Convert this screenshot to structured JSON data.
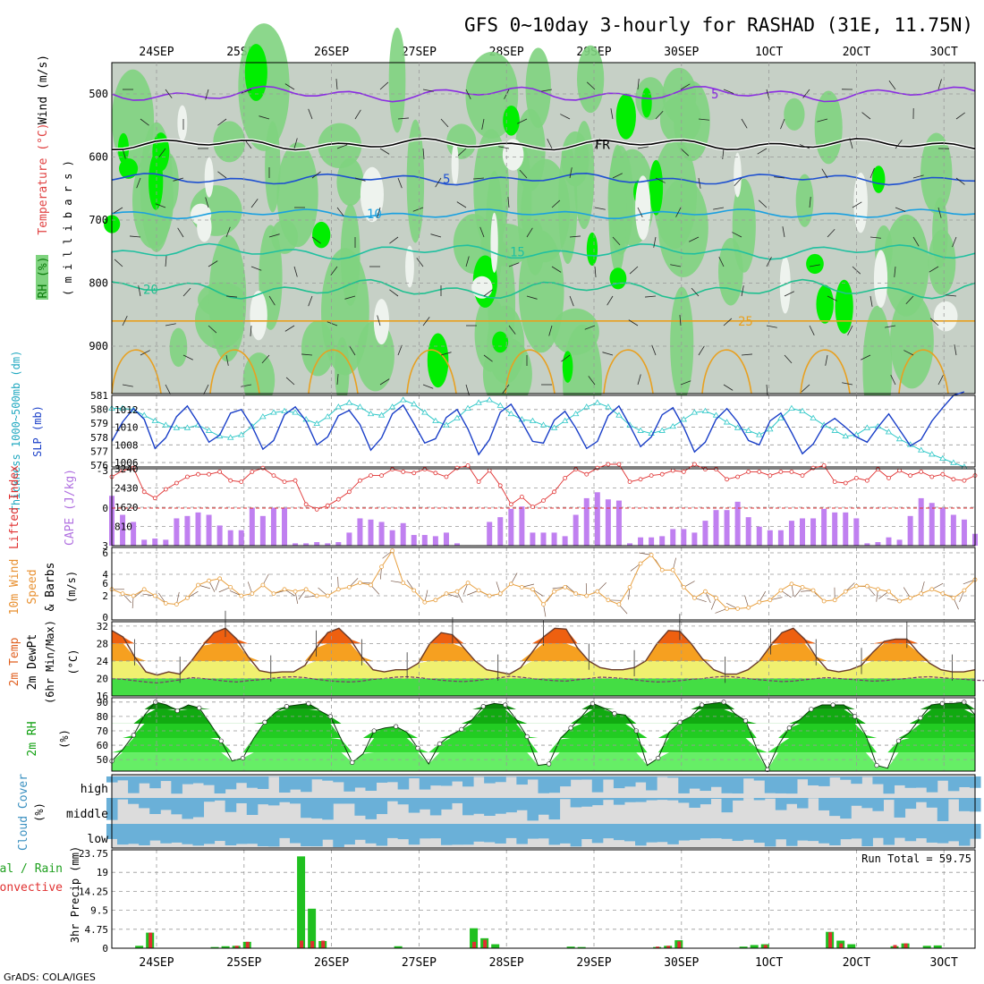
{
  "title": "GFS 0~10day 3-hourly for RASHAD (31E, 11.75N)",
  "footer": "GrADS: COLA/IGES",
  "dates": [
    "24SEP",
    "25SEP",
    "26SEP",
    "27SEP",
    "28SEP",
    "29SEP",
    "30SEP",
    "1OCT",
    "2OCT",
    "3OCT"
  ],
  "colors": {
    "rh_light": "#d9ddd9",
    "rh_mid": "#c6d0c6",
    "rh_green": "#7fd37f",
    "rh_bright": "#00ee00",
    "temp_purple": "#8a2be2",
    "temp_blue": "#1e50d0",
    "temp_cyan": "#1aa0e0",
    "temp_teal": "#20c0a0",
    "temp_orange": "#e8a020",
    "cape_bar": "#c080f0",
    "lifted": "#e03030",
    "slp": "#1a3fc8",
    "thick": "#30c8c8",
    "wind": "#e8a040",
    "precip_total": "#20c020",
    "precip_conv": "#e03030",
    "cloud": "#6ab0d8"
  },
  "panels": {
    "upper": {
      "label_rh": "RH (%)",
      "label_temp": "Temperature (°C)",
      "label_wind": "Wind (m/s)",
      "ylabel": "( m i l l i b a r s )",
      "yticks": [
        "500",
        "600",
        "700",
        "800",
        "900"
      ],
      "freezing_label": "FR"
    },
    "slp": {
      "label_thick": "Thickness 1000~500mb (dm)",
      "label_slp": "SLP (mb)",
      "thick_ticks": [
        "581",
        "580",
        "579",
        "578",
        "577",
        "576"
      ],
      "slp_ticks": [
        "1012",
        "1010",
        "1008",
        "1006"
      ]
    },
    "cape": {
      "label_li": "Lifted Index",
      "label_cape": "CAPE (J/kg)",
      "li_ticks": [
        "-3",
        "0",
        "3",
        "6"
      ],
      "cape_ticks": [
        "3240",
        "2430",
        "1620",
        "810"
      ]
    },
    "wind": {
      "label_a": "10m Wind",
      "label_b": "Speed",
      "label_c": "& Barbs",
      "unit": "(m/s)",
      "ticks": [
        "6",
        "4",
        "2",
        "0"
      ]
    },
    "temp": {
      "label_a": "2m Temp",
      "label_b": "2m DewPt",
      "label_c": "(6hr Min/Max)",
      "unit": "(°C)",
      "ticks": [
        "32",
        "28",
        "24",
        "20",
        "16"
      ]
    },
    "rh": {
      "label": "2m RH",
      "unit": "(%)",
      "ticks": [
        "90",
        "80",
        "70",
        "60",
        "50"
      ]
    },
    "cloud": {
      "label": "Cloud Cover",
      "unit": "(%)",
      "levels": [
        "high",
        "middle",
        "low"
      ]
    },
    "precip": {
      "label_a": "Total / Rain",
      "label_b": "Convective",
      "ylabel": "3hr Precip (mm)",
      "ticks": [
        "23.75",
        "19",
        "14.25",
        "9.5",
        "4.75",
        "0"
      ],
      "run_total": "Run Total = 59.75"
    }
  },
  "chart_data": [
    {
      "type": "area",
      "title": "GFS 0~10day 3-hourly for RASHAD (31E, 11.75N)",
      "ylabel": "millibars",
      "ylim": [
        975,
        445
      ],
      "contour_labels": [
        "5",
        "10",
        "15",
        "20",
        "25",
        "FR"
      ],
      "isotherms_hPa": {
        "5C": 635,
        "10C": 690,
        "15C": 750,
        "20C": 810,
        "0C": 580
      }
    },
    {
      "type": "line",
      "title": "Thickness 1000~500mb (dm) / SLP (mb)",
      "series": [
        {
          "name": "SLP (mb)",
          "values": [
            1008.4,
            1010.6,
            1012.1,
            1010.9,
            1007.6,
            1008.8,
            1011.2,
            1012.4,
            1010.5,
            1008.3,
            1009.1,
            1011.6,
            1012.0,
            1010.1,
            1007.5,
            1008.5,
            1011.4,
            1012.3,
            1010.7,
            1008.0,
            1008.9,
            1011.3,
            1011.9,
            1010.3,
            1007.4,
            1008.8,
            1011.5,
            1012.5,
            1010.4,
            1008.2,
            1008.7,
            1011.1,
            1012.0,
            1009.8,
            1006.9,
            1008.6,
            1011.7,
            1012.6,
            1010.6,
            1008.4,
            1008.2,
            1010.8,
            1011.8,
            1009.9,
            1007.6,
            1008.4,
            1011.3,
            1012.4,
            1010.2,
            1007.8,
            1008.9,
            1011.4,
            1012.2,
            1010.0,
            1007.2,
            1008.3,
            1010.9,
            1012.1,
            1010.6,
            1008.5,
            1008.0,
            1010.7,
            1011.6,
            1009.4,
            1007.0,
            1008.1,
            1010.2,
            1011.0,
            1010.0,
            1008.9,
            1008.3,
            1010.0,
            1011.5,
            1009.7,
            1007.9,
            1008.6,
            1010.7,
            1012.2,
            1013.6,
            1014.0
          ]
        },
        {
          "name": "Thickness (dm)",
          "values": [
            580.2,
            580.2,
            580.1,
            579.7,
            579.3,
            579.0,
            578.8,
            578.8,
            579.0,
            578.6,
            578.2,
            578.1,
            578.3,
            578.9,
            579.6,
            579.9,
            580.0,
            579.9,
            579.4,
            579.1,
            579.6,
            580.3,
            580.6,
            580.3,
            579.8,
            579.7,
            580.3,
            580.8,
            580.5,
            579.9,
            579.3,
            579.0,
            579.5,
            580.2,
            580.6,
            580.8,
            580.4,
            579.8,
            579.4,
            579.3,
            579.0,
            578.8,
            579.3,
            579.8,
            580.3,
            580.6,
            580.3,
            579.7,
            579.0,
            578.6,
            578.4,
            578.6,
            578.9,
            579.4,
            579.9,
            580.0,
            579.7,
            579.2,
            578.8,
            578.6,
            578.3,
            578.7,
            579.5,
            580.2,
            580.0,
            579.5,
            579.0,
            578.6,
            578.2,
            578.3,
            578.8,
            578.9,
            578.5,
            578.0,
            577.6,
            577.2,
            576.9,
            576.6,
            576.3,
            576.0
          ]
        }
      ]
    },
    {
      "type": "bar",
      "title": "Lifted Index / CAPE (J/kg)",
      "ylim": [
        0,
        3240
      ],
      "series": [
        {
          "name": "CAPE (J/kg)",
          "values": [
            2100,
            1300,
            1000,
            250,
            300,
            250,
            1150,
            1250,
            1400,
            1300,
            850,
            650,
            650,
            1600,
            1250,
            1600,
            1600,
            100,
            100,
            150,
            100,
            150,
            550,
            1150,
            1100,
            1000,
            650,
            950,
            450,
            450,
            400,
            550,
            100,
            20,
            20,
            1000,
            1200,
            1550,
            1650,
            550,
            550,
            550,
            400,
            1300,
            2000,
            2250,
            1950,
            1900,
            100,
            350,
            350,
            400,
            700,
            700,
            550,
            1050,
            1500,
            1500,
            1850,
            1200,
            800,
            650,
            650,
            1050,
            1150,
            1150,
            1550,
            1400,
            1400,
            1150,
            100,
            150,
            350,
            250,
            1250,
            2000,
            1800,
            1600,
            1300,
            1100,
            500,
            500,
            200
          ]
        },
        {
          "name": "Lifted Index",
          "values": [
            -2.5,
            -3,
            -3.2,
            -1.3,
            -0.8,
            -1.5,
            -2.0,
            -2.5,
            -2.7,
            -2.7,
            -2.9,
            -2.2,
            -2.1,
            -2.9,
            -3.2,
            -2.6,
            -2.1,
            -2.2,
            -0.3,
            0.1,
            -0.2,
            -0.7,
            -1.3,
            -2.2,
            -2.6,
            -2.6,
            -3.1,
            -2.9,
            -2.8,
            -3.1,
            -2.8,
            -2.5,
            -3.2,
            -3.4,
            -2.1,
            -3.0,
            -1.8,
            -0.3,
            -0.9,
            -0.1,
            -0.6,
            -1.3,
            -2.4,
            -3.1,
            -2.7,
            -3.2,
            -3.5,
            -3.5,
            -2.1,
            -2.3,
            -2.6,
            -2.7,
            -3.0,
            -2.9,
            -3.5,
            -3.1,
            -3.1,
            -2.3,
            -2.5,
            -2.9,
            -2.9,
            -2.6,
            -2.9,
            -2.9,
            -2.6,
            -3.2,
            -3.4,
            -2.1,
            -2.0,
            -2.4,
            -2.2,
            -3.1,
            -2.4,
            -3.0,
            -2.6,
            -2.9,
            -2.5,
            -2.7,
            -2.3,
            -2.2,
            -2.6,
            -1.9,
            -2.3
          ]
        }
      ]
    },
    {
      "type": "line",
      "title": "10m Wind Speed & Barbs (m/s)",
      "ylim": [
        0,
        6.5
      ],
      "series": [
        {
          "name": "Speed (m/s)",
          "values": [
            2.6,
            2.2,
            2.0,
            2.6,
            2.0,
            1.3,
            1.2,
            1.8,
            3.0,
            3.4,
            3.6,
            2.8,
            2.0,
            2.2,
            3.0,
            2.2,
            2.6,
            2.4,
            2.6,
            2.0,
            2.0,
            2.6,
            2.8,
            3.2,
            3.0,
            4.7,
            6.2,
            3.2,
            2.5,
            1.4,
            1.6,
            2.2,
            2.4,
            3.2,
            2.5,
            2.0,
            2.2,
            3.1,
            2.8,
            2.6,
            1.2,
            2.4,
            2.8,
            2.2,
            2.0,
            2.4,
            1.6,
            1.2,
            2.8,
            5.0,
            5.8,
            4.4,
            4.4,
            2.8,
            1.8,
            2.4,
            1.8,
            0.8,
            0.8,
            0.9,
            1.4,
            1.6,
            2.5,
            3.1,
            2.8,
            2.5,
            1.5,
            1.6,
            2.4,
            2.9,
            2.9,
            2.6,
            2.4,
            1.5,
            1.8,
            2.2,
            2.6,
            2.2,
            1.8,
            2.5,
            3.5,
            2.5,
            2.0,
            2.1,
            3.5,
            4.2
          ]
        }
      ]
    },
    {
      "type": "area",
      "title": "2m Temp / 2m DewPt (°C)",
      "ylim": [
        16,
        33
      ],
      "series": [
        {
          "name": "2m Temp",
          "values": [
            31,
            29.5,
            25,
            21.5,
            20.8,
            21.5,
            21,
            24,
            27.5,
            30.5,
            31.5,
            29,
            25,
            21.8,
            21.3,
            21.5,
            21.5,
            23,
            27,
            30.5,
            31.5,
            29,
            25,
            22,
            21.5,
            22,
            22,
            23.5,
            28,
            30.5,
            30,
            27,
            24,
            22,
            21.5,
            21,
            22.5,
            26,
            29.5,
            31.5,
            31.3,
            27,
            24,
            22.5,
            22,
            22,
            22.5,
            24,
            28,
            31,
            30.8,
            28,
            24.5,
            22,
            21,
            21,
            22,
            24,
            27.5,
            30.5,
            31.5,
            29,
            25,
            22,
            21.5,
            22,
            23,
            26,
            28.5,
            29,
            29,
            26,
            23.5,
            22,
            21.5,
            21.5,
            22
          ]
        },
        {
          "name": "2m DewPt",
          "values": [
            20,
            19.8,
            19.5,
            19.2,
            19,
            19.3,
            19.7,
            20.2,
            20,
            19.7,
            19.4,
            19.2,
            19.5,
            19.7,
            20,
            20.3,
            20.4,
            20.2,
            19.8,
            19.5,
            19.3,
            19.2,
            19.4,
            19.8,
            20,
            20.3,
            20.4,
            20.2,
            19.9,
            19.6,
            19.4,
            19.3,
            19.5,
            19.8,
            20.1,
            20.5,
            20.3,
            20,
            19.7,
            19.5,
            19.4,
            19.7,
            20,
            20.3,
            20.2,
            20,
            19.7,
            19.4,
            19.2,
            19.3,
            19.5,
            19.8,
            20,
            20.3,
            20.5,
            20.3,
            20,
            19.7,
            19.5,
            19.3,
            19.4,
            19.7,
            20,
            20.2,
            20,
            19.8,
            19.6,
            19.4,
            19.5,
            19.8,
            20,
            20.3,
            20.4,
            20.2,
            20,
            19.8,
            19.6,
            19.5
          ]
        }
      ]
    },
    {
      "type": "area",
      "title": "2m RH (%)",
      "ylim": [
        42,
        93
      ],
      "series": [
        {
          "name": "2m RH",
          "values": [
            49,
            57,
            67,
            81,
            90,
            88,
            84,
            88,
            86,
            75,
            63,
            49,
            51,
            65,
            76,
            83,
            87,
            88,
            89,
            84,
            80,
            64,
            48,
            54,
            70,
            72,
            73,
            69,
            58,
            47,
            61,
            67,
            71,
            78,
            87,
            89,
            88,
            78,
            66,
            46,
            47,
            64,
            72,
            80,
            89,
            86,
            82,
            81,
            70,
            46,
            51,
            69,
            76,
            80,
            88,
            89,
            90,
            82,
            77,
            58,
            43,
            60,
            72,
            78,
            85,
            88,
            88,
            88,
            80,
            67,
            46,
            44,
            63,
            69,
            79,
            88,
            89,
            89,
            90,
            81
          ]
        }
      ]
    },
    {
      "type": "heatmap",
      "title": "Cloud Cover (%)",
      "categories": [
        "high",
        "middle",
        "low"
      ]
    },
    {
      "type": "bar",
      "title": "3hr Precip (mm)",
      "ylabel": "3hr Precip (mm)",
      "ylim": [
        0,
        23.75
      ],
      "annotation": "Run Total = 59.75",
      "series": [
        {
          "name": "Total / Rain",
          "events": [
            [
              2,
              0.6
            ],
            [
              3,
              3.9
            ],
            [
              9,
              0.3
            ],
            [
              10,
              0.5
            ],
            [
              11,
              0.6
            ],
            [
              12,
              1.6
            ],
            [
              17,
              23
            ],
            [
              18,
              9.9
            ],
            [
              19,
              1.8
            ],
            [
              26,
              0.5
            ],
            [
              33,
              5
            ],
            [
              34,
              2.5
            ],
            [
              35,
              1.0
            ],
            [
              42,
              0.4
            ],
            [
              43,
              0.3
            ],
            [
              50,
              0.3
            ],
            [
              51,
              0.6
            ],
            [
              52,
              2.0
            ],
            [
              58,
              0.4
            ],
            [
              59,
              0.8
            ],
            [
              60,
              1.0
            ],
            [
              66,
              4.1
            ],
            [
              67,
              1.9
            ],
            [
              68,
              1.0
            ],
            [
              72,
              0.5
            ],
            [
              73,
              1.2
            ],
            [
              75,
              0.6
            ],
            [
              76,
              0.7
            ]
          ]
        },
        {
          "name": "Convective",
          "events": [
            [
              3,
              3.9
            ],
            [
              11,
              0.6
            ],
            [
              12,
              1.6
            ],
            [
              17,
              1.9
            ],
            [
              18,
              1.8
            ],
            [
              19,
              1.9
            ],
            [
              33,
              1.6
            ],
            [
              34,
              2.1
            ],
            [
              50,
              0.4
            ],
            [
              51,
              0.6
            ],
            [
              52,
              1.7
            ],
            [
              60,
              0.8
            ],
            [
              66,
              4.0
            ],
            [
              67,
              1.2
            ],
            [
              72,
              0.8
            ],
            [
              73,
              1.2
            ]
          ]
        }
      ]
    }
  ]
}
